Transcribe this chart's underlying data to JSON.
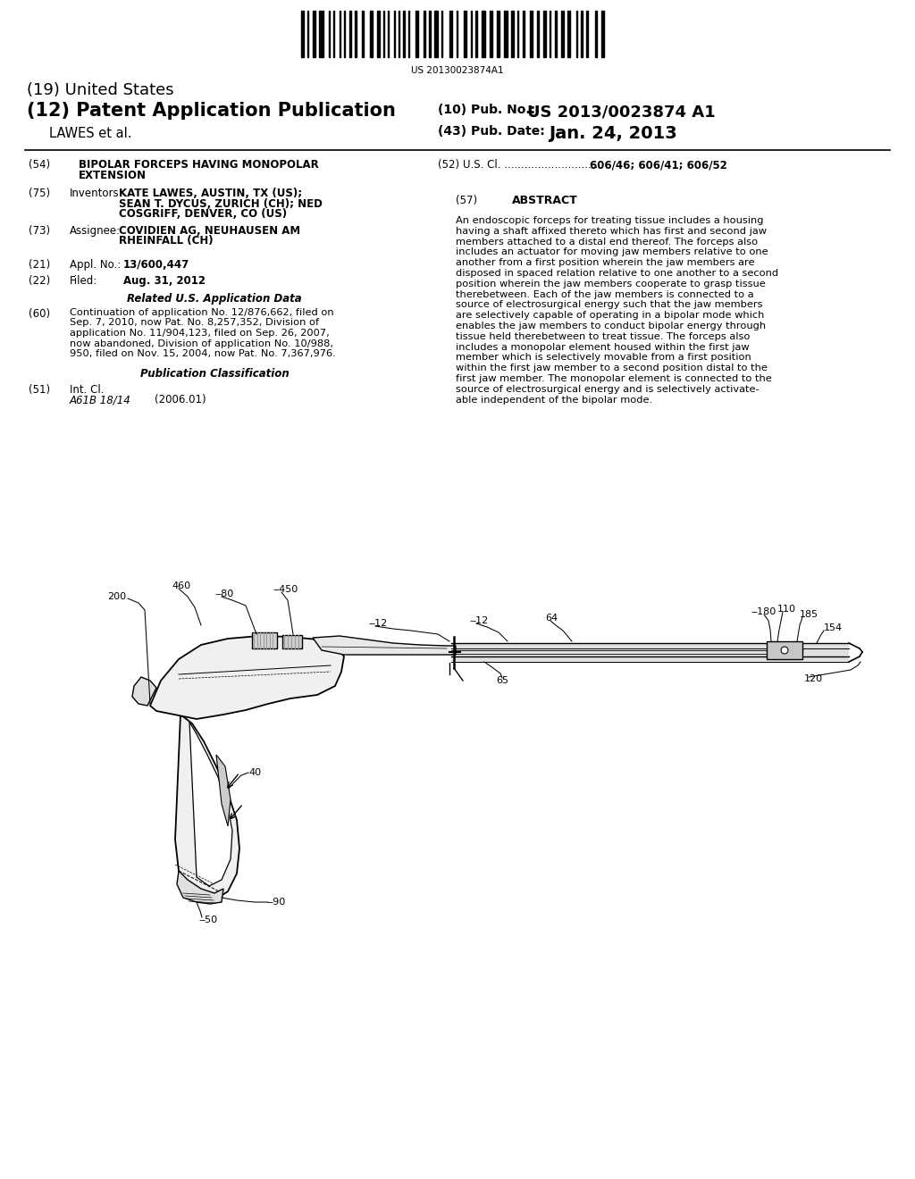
{
  "bg_color": "#ffffff",
  "barcode_text": "US 20130023874A1",
  "title_19": "(19) United States",
  "title_12_left": "(12) Patent Application Publication",
  "lawes": "LAWES et al.",
  "pub_no_label": "(10) Pub. No.:",
  "pub_no": "US 2013/0023874 A1",
  "pub_date_label": "(43) Pub. Date:",
  "pub_date": "Jan. 24, 2013",
  "field54_label": "(54)",
  "field54_line1": "BIPOLAR FORCEPS HAVING MONOPOLAR",
  "field54_line2": "EXTENSION",
  "field52_label": "(52)",
  "field52_text": "U.S. Cl. .............................",
  "field52_values": "606/46; 606/41; 606/52",
  "field75_label": "(75)",
  "field75_prefix": "Inventors:",
  "field75_line1": "KATE LAWES, AUSTIN, TX (US);",
  "field75_line2": "SEAN T. DYCUS, ZURICH (CH); NED",
  "field75_line3": "COSGRIFF, DENVER, CO (US)",
  "field57_label": "(57)",
  "field57_title": "ABSTRACT",
  "abstract_lines": [
    "An endoscopic forceps for treating tissue includes a housing",
    "having a shaft affixed thereto which has first and second jaw",
    "members attached to a distal end thereof. The forceps also",
    "includes an actuator for moving jaw members relative to one",
    "another from a first position wherein the jaw members are",
    "disposed in spaced relation relative to one another to a second",
    "position wherein the jaw members cooperate to grasp tissue",
    "therebetween. Each of the jaw members is connected to a",
    "source of electrosurgical energy such that the jaw members",
    "are selectively capable of operating in a bipolar mode which",
    "enables the jaw members to conduct bipolar energy through",
    "tissue held therebetween to treat tissue. The forceps also",
    "includes a monopolar element housed within the first jaw",
    "member which is selectively movable from a first position",
    "within the first jaw member to a second position distal to the",
    "first jaw member. The monopolar element is connected to the",
    "source of electrosurgical energy and is selectively activate-",
    "able independent of the bipolar mode."
  ],
  "field73_label": "(73)",
  "field73_prefix": "Assignee:",
  "field73_line1": "COVIDIEN AG, NEUHAUSEN AM",
  "field73_line2": "RHEINFALL (CH)",
  "field21_label": "(21)",
  "field21_text": "Appl. No.:",
  "field21_value": "13/600,447",
  "field22_label": "(22)",
  "field22_text": "Filed:",
  "field22_value": "Aug. 31, 2012",
  "related_title": "Related U.S. Application Data",
  "field60_label": "(60)",
  "field60_lines": [
    "Continuation of application No. 12/876,662, filed on",
    "Sep. 7, 2010, now Pat. No. 8,257,352, Division of",
    "application No. 11/904,123, filed on Sep. 26, 2007,",
    "now abandoned, Division of application No. 10/988,",
    "950, filed on Nov. 15, 2004, now Pat. No. 7,367,976."
  ],
  "pub_class_title": "Publication Classification",
  "field51_label": "(51)",
  "field51_a": "Int. Cl.",
  "field51_b": "A61B 18/14",
  "field51_c": "(2006.01)"
}
